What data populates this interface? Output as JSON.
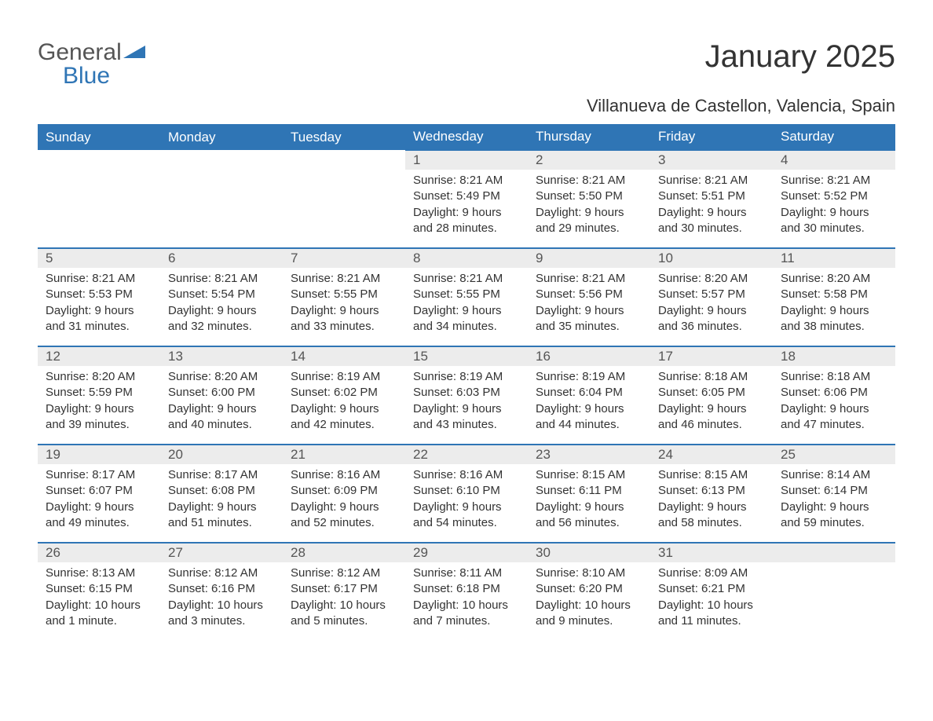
{
  "brand": {
    "part1": "General",
    "part2": "Blue",
    "accent_color": "#2f75b5"
  },
  "title": "January 2025",
  "location": "Villanueva de Castellon, Valencia, Spain",
  "colors": {
    "header_bg": "#2f75b5",
    "header_text": "#ffffff",
    "daynum_bg": "#ececec",
    "daynum_text": "#555555",
    "body_text": "#333333",
    "row_divider": "#2f75b5",
    "page_bg": "#ffffff"
  },
  "day_headers": [
    "Sunday",
    "Monday",
    "Tuesday",
    "Wednesday",
    "Thursday",
    "Friday",
    "Saturday"
  ],
  "weeks": [
    [
      null,
      null,
      null,
      {
        "n": "1",
        "sunrise": "8:21 AM",
        "sunset": "5:49 PM",
        "daylight": "9 hours and 28 minutes."
      },
      {
        "n": "2",
        "sunrise": "8:21 AM",
        "sunset": "5:50 PM",
        "daylight": "9 hours and 29 minutes."
      },
      {
        "n": "3",
        "sunrise": "8:21 AM",
        "sunset": "5:51 PM",
        "daylight": "9 hours and 30 minutes."
      },
      {
        "n": "4",
        "sunrise": "8:21 AM",
        "sunset": "5:52 PM",
        "daylight": "9 hours and 30 minutes."
      }
    ],
    [
      {
        "n": "5",
        "sunrise": "8:21 AM",
        "sunset": "5:53 PM",
        "daylight": "9 hours and 31 minutes."
      },
      {
        "n": "6",
        "sunrise": "8:21 AM",
        "sunset": "5:54 PM",
        "daylight": "9 hours and 32 minutes."
      },
      {
        "n": "7",
        "sunrise": "8:21 AM",
        "sunset": "5:55 PM",
        "daylight": "9 hours and 33 minutes."
      },
      {
        "n": "8",
        "sunrise": "8:21 AM",
        "sunset": "5:55 PM",
        "daylight": "9 hours and 34 minutes."
      },
      {
        "n": "9",
        "sunrise": "8:21 AM",
        "sunset": "5:56 PM",
        "daylight": "9 hours and 35 minutes."
      },
      {
        "n": "10",
        "sunrise": "8:20 AM",
        "sunset": "5:57 PM",
        "daylight": "9 hours and 36 minutes."
      },
      {
        "n": "11",
        "sunrise": "8:20 AM",
        "sunset": "5:58 PM",
        "daylight": "9 hours and 38 minutes."
      }
    ],
    [
      {
        "n": "12",
        "sunrise": "8:20 AM",
        "sunset": "5:59 PM",
        "daylight": "9 hours and 39 minutes."
      },
      {
        "n": "13",
        "sunrise": "8:20 AM",
        "sunset": "6:00 PM",
        "daylight": "9 hours and 40 minutes."
      },
      {
        "n": "14",
        "sunrise": "8:19 AM",
        "sunset": "6:02 PM",
        "daylight": "9 hours and 42 minutes."
      },
      {
        "n": "15",
        "sunrise": "8:19 AM",
        "sunset": "6:03 PM",
        "daylight": "9 hours and 43 minutes."
      },
      {
        "n": "16",
        "sunrise": "8:19 AM",
        "sunset": "6:04 PM",
        "daylight": "9 hours and 44 minutes."
      },
      {
        "n": "17",
        "sunrise": "8:18 AM",
        "sunset": "6:05 PM",
        "daylight": "9 hours and 46 minutes."
      },
      {
        "n": "18",
        "sunrise": "8:18 AM",
        "sunset": "6:06 PM",
        "daylight": "9 hours and 47 minutes."
      }
    ],
    [
      {
        "n": "19",
        "sunrise": "8:17 AM",
        "sunset": "6:07 PM",
        "daylight": "9 hours and 49 minutes."
      },
      {
        "n": "20",
        "sunrise": "8:17 AM",
        "sunset": "6:08 PM",
        "daylight": "9 hours and 51 minutes."
      },
      {
        "n": "21",
        "sunrise": "8:16 AM",
        "sunset": "6:09 PM",
        "daylight": "9 hours and 52 minutes."
      },
      {
        "n": "22",
        "sunrise": "8:16 AM",
        "sunset": "6:10 PM",
        "daylight": "9 hours and 54 minutes."
      },
      {
        "n": "23",
        "sunrise": "8:15 AM",
        "sunset": "6:11 PM",
        "daylight": "9 hours and 56 minutes."
      },
      {
        "n": "24",
        "sunrise": "8:15 AM",
        "sunset": "6:13 PM",
        "daylight": "9 hours and 58 minutes."
      },
      {
        "n": "25",
        "sunrise": "8:14 AM",
        "sunset": "6:14 PM",
        "daylight": "9 hours and 59 minutes."
      }
    ],
    [
      {
        "n": "26",
        "sunrise": "8:13 AM",
        "sunset": "6:15 PM",
        "daylight": "10 hours and 1 minute."
      },
      {
        "n": "27",
        "sunrise": "8:12 AM",
        "sunset": "6:16 PM",
        "daylight": "10 hours and 3 minutes."
      },
      {
        "n": "28",
        "sunrise": "8:12 AM",
        "sunset": "6:17 PM",
        "daylight": "10 hours and 5 minutes."
      },
      {
        "n": "29",
        "sunrise": "8:11 AM",
        "sunset": "6:18 PM",
        "daylight": "10 hours and 7 minutes."
      },
      {
        "n": "30",
        "sunrise": "8:10 AM",
        "sunset": "6:20 PM",
        "daylight": "10 hours and 9 minutes."
      },
      {
        "n": "31",
        "sunrise": "8:09 AM",
        "sunset": "6:21 PM",
        "daylight": "10 hours and 11 minutes."
      },
      null
    ]
  ],
  "labels": {
    "sunrise": "Sunrise: ",
    "sunset": "Sunset: ",
    "daylight": "Daylight: "
  }
}
